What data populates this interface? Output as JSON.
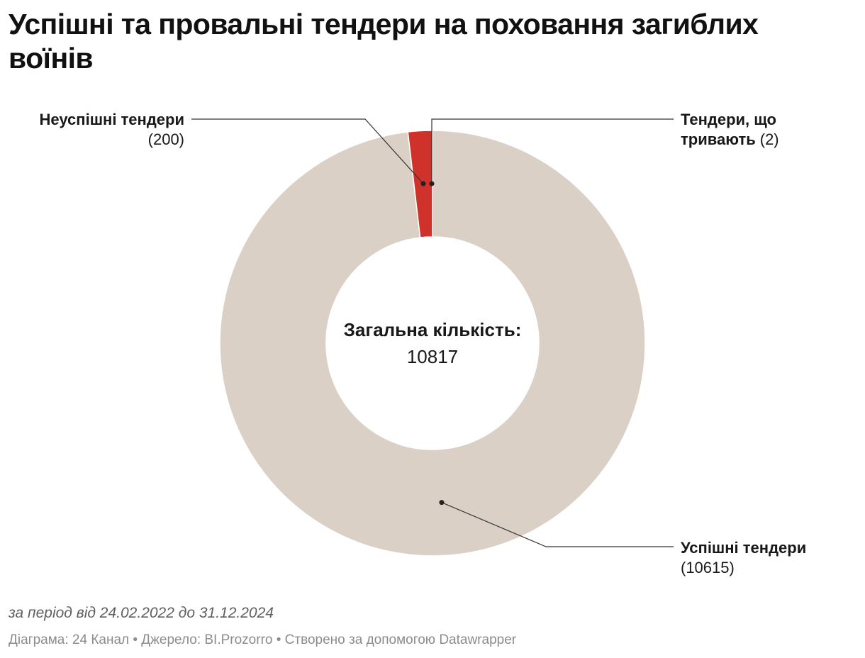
{
  "title": "Успішні та провальні тендери на поховання загиблих воїнів",
  "chart_data": {
    "type": "pie",
    "variant": "donut",
    "categories": [
      "Тендери, що тривають",
      "Успішні тендери",
      "Неуспішні тендери"
    ],
    "values": [
      2,
      10615,
      200
    ],
    "colors": [
      "#cf322a",
      "#dad0c6",
      "#cf322a"
    ],
    "center_label": "Загальна кількість:",
    "center_value": "10817",
    "labels": [
      {
        "lines": [
          "Тендери, що",
          "тривають"
        ],
        "value": "(2)"
      },
      {
        "lines": [
          "Успішні тендери"
        ],
        "value": "(10615)"
      },
      {
        "lines": [
          "Неуспішні тендери"
        ],
        "value": "(200)"
      }
    ]
  },
  "note": "за період від 24.02.2022 до 31.12.2024",
  "footer": "Діаграма: 24 Канал • Джерело: BI.Prozorro • Створено за допомогою Datawrapper"
}
